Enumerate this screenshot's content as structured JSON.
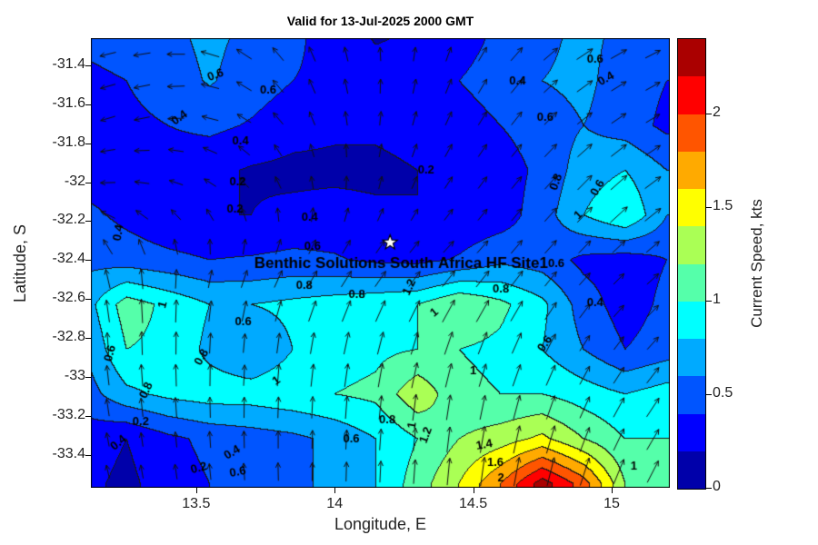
{
  "chart_data": {
    "type": "heatmap",
    "subtype": "filled_contour_with_quiver_arrows",
    "title": "Valid for 13-Jul-2025 2000 GMT",
    "xlabel": "Longitude, E",
    "ylabel": "Latitude, S",
    "units": "kts",
    "xlim": [
      13.12,
      15.21
    ],
    "ylim": [
      -33.57,
      -31.26
    ],
    "grid_on": false,
    "xticks": [
      {
        "v": 13.5,
        "label": "13.5"
      },
      {
        "v": 14.0,
        "label": "14"
      },
      {
        "v": 14.5,
        "label": "14.5"
      },
      {
        "v": 15.0,
        "label": "15"
      }
    ],
    "yticks": [
      {
        "v": -31.4,
        "label": "-31.4"
      },
      {
        "v": -31.6,
        "label": "-31.6"
      },
      {
        "v": -31.8,
        "label": "-31.8"
      },
      {
        "v": -32.0,
        "label": "-32"
      },
      {
        "v": -32.2,
        "label": "-32.2"
      },
      {
        "v": -32.4,
        "label": "-32.4"
      },
      {
        "v": -32.6,
        "label": "-32.6"
      },
      {
        "v": -32.8,
        "label": "-32.8"
      },
      {
        "v": -33.0,
        "label": "-33"
      },
      {
        "v": -33.2,
        "label": "-33.2"
      },
      {
        "v": -33.4,
        "label": "-33.4"
      }
    ],
    "colorbar": {
      "label": "Current Speed, kts",
      "min": 0,
      "max": 2.4,
      "band_step": 0.2,
      "position": "right",
      "ticks": [
        {
          "v": 0,
          "label": "0"
        },
        {
          "v": 0.5,
          "label": "0.5"
        },
        {
          "v": 1,
          "label": "1"
        },
        {
          "v": 1.5,
          "label": "1.5"
        },
        {
          "v": 2,
          "label": "2"
        }
      ],
      "colors": [
        "#0000aa",
        "#0000ff",
        "#0055ff",
        "#00aaff",
        "#00ffff",
        "#55ffaa",
        "#aaff55",
        "#ffff00",
        "#ffaa00",
        "#ff5500",
        "#ff0000",
        "#aa0000"
      ]
    },
    "grid": {
      "lon": [
        13.1,
        13.25,
        13.4,
        13.55,
        13.7,
        13.85,
        14.0,
        14.15,
        14.3,
        14.45,
        14.6,
        14.75,
        14.9,
        15.05,
        15.2
      ],
      "lat": [
        -31.25,
        -31.48,
        -31.71,
        -31.94,
        -32.17,
        -32.4,
        -32.63,
        -32.86,
        -33.09,
        -33.32,
        -33.55
      ],
      "speed_kts": [
        [
          0.45,
          0.5,
          0.55,
          0.65,
          0.55,
          0.45,
          0.3,
          0.18,
          0.22,
          0.3,
          0.45,
          0.55,
          0.65,
          0.55,
          0.45
        ],
        [
          0.35,
          0.4,
          0.5,
          0.62,
          0.5,
          0.4,
          0.35,
          0.28,
          0.32,
          0.4,
          0.5,
          0.6,
          0.65,
          0.5,
          0.4
        ],
        [
          0.3,
          0.35,
          0.4,
          0.45,
          0.38,
          0.28,
          0.24,
          0.24,
          0.28,
          0.3,
          0.4,
          0.5,
          0.6,
          0.5,
          0.35
        ],
        [
          0.3,
          0.3,
          0.3,
          0.25,
          0.18,
          0.15,
          0.15,
          0.15,
          0.2,
          0.25,
          0.3,
          0.45,
          0.7,
          0.8,
          0.6
        ],
        [
          0.45,
          0.35,
          0.25,
          0.2,
          0.2,
          0.25,
          0.28,
          0.24,
          0.2,
          0.25,
          0.3,
          0.5,
          0.8,
          1.0,
          0.6
        ],
        [
          0.55,
          0.5,
          0.45,
          0.4,
          0.42,
          0.45,
          0.42,
          0.36,
          0.34,
          0.42,
          0.55,
          0.5,
          0.35,
          0.3,
          0.4
        ],
        [
          0.7,
          1.1,
          0.95,
          0.8,
          0.8,
          0.85,
          0.9,
          0.95,
          1.0,
          1.2,
          1.05,
          0.85,
          0.5,
          0.3,
          0.45
        ],
        [
          0.6,
          1.0,
          0.95,
          0.75,
          0.6,
          0.8,
          0.9,
          0.95,
          1.0,
          1.0,
          0.95,
          0.8,
          0.6,
          0.4,
          0.5
        ],
        [
          0.5,
          0.75,
          0.85,
          0.9,
          0.9,
          0.95,
          1.0,
          1.05,
          1.35,
          1.05,
          1.0,
          1.0,
          0.9,
          0.8,
          0.9
        ],
        [
          0.3,
          0.2,
          0.35,
          0.45,
          0.5,
          0.55,
          0.65,
          0.8,
          1.0,
          1.2,
          1.3,
          1.45,
          1.2,
          1.0,
          1.0
        ],
        [
          0.25,
          0.15,
          0.3,
          0.4,
          0.5,
          0.6,
          0.6,
          0.8,
          1.1,
          1.4,
          1.8,
          2.3,
          1.9,
          1.2,
          1.0
        ]
      ]
    },
    "quiver": {
      "lon": [
        13.12,
        13.38,
        13.64,
        13.9,
        14.17,
        14.43,
        14.69,
        14.95,
        15.21
      ],
      "lat": [
        -31.26,
        -31.645,
        -32.03,
        -32.415,
        -32.8,
        -33.185,
        -33.57
      ],
      "angle_deg_ccw_from_east": [
        [
          195,
          185,
          150,
          115,
          95,
          70,
          45,
          30,
          25
        ],
        [
          200,
          190,
          155,
          115,
          85,
          65,
          50,
          35,
          30
        ],
        [
          185,
          165,
          135,
          100,
          75,
          55,
          50,
          45,
          35
        ],
        [
          110,
          90,
          70,
          55,
          50,
          45,
          50,
          45,
          40
        ],
        [
          95,
          90,
          85,
          80,
          75,
          70,
          65,
          55,
          45
        ],
        [
          100,
          95,
          90,
          88,
          85,
          82,
          75,
          65,
          55
        ],
        [
          105,
          100,
          95,
          90,
          88,
          85,
          80,
          72,
          62
        ]
      ]
    },
    "contour_labels": [
      {
        "lon": 13.57,
        "lat": -31.45,
        "text": "0.6",
        "rot": -20
      },
      {
        "lon": 13.76,
        "lat": -31.53,
        "text": "0.6",
        "rot": 0
      },
      {
        "lon": 13.44,
        "lat": -31.67,
        "text": "0.4",
        "rot": -35
      },
      {
        "lon": 13.66,
        "lat": -31.79,
        "text": "0.4",
        "rot": 0
      },
      {
        "lon": 14.66,
        "lat": -31.48,
        "text": "0.4",
        "rot": 0
      },
      {
        "lon": 14.94,
        "lat": -31.37,
        "text": "0.6",
        "rot": 0
      },
      {
        "lon": 14.98,
        "lat": -31.47,
        "text": "0.4",
        "rot": -30
      },
      {
        "lon": 14.76,
        "lat": -31.67,
        "text": "0.6",
        "rot": 0
      },
      {
        "lon": 13.65,
        "lat": -32.0,
        "text": "0.2",
        "rot": 0
      },
      {
        "lon": 13.64,
        "lat": -32.14,
        "text": "0.2",
        "rot": 0
      },
      {
        "lon": 13.91,
        "lat": -32.18,
        "text": "0.4",
        "rot": 0
      },
      {
        "lon": 14.33,
        "lat": -31.94,
        "text": "0.2",
        "rot": 0
      },
      {
        "lon": 14.8,
        "lat": -32.0,
        "text": "0.8",
        "rot": -70
      },
      {
        "lon": 14.95,
        "lat": -32.03,
        "text": "0.6",
        "rot": -60
      },
      {
        "lon": 14.88,
        "lat": -32.17,
        "text": "1",
        "rot": -45
      },
      {
        "lon": 13.22,
        "lat": -32.26,
        "text": "0.4",
        "rot": -80
      },
      {
        "lon": 13.92,
        "lat": -32.33,
        "text": "0.6",
        "rot": 0
      },
      {
        "lon": 13.89,
        "lat": -32.53,
        "text": "0.8",
        "rot": 0
      },
      {
        "lon": 14.08,
        "lat": -32.58,
        "text": "0.8",
        "rot": 0
      },
      {
        "lon": 14.27,
        "lat": -32.54,
        "text": "1.2",
        "rot": -65
      },
      {
        "lon": 14.36,
        "lat": -32.67,
        "text": "1",
        "rot": -40
      },
      {
        "lon": 14.6,
        "lat": -32.55,
        "text": "0.8",
        "rot": 0
      },
      {
        "lon": 14.94,
        "lat": -32.62,
        "text": "0.4",
        "rot": 0
      },
      {
        "lon": 14.8,
        "lat": -32.42,
        "text": "0.6",
        "rot": 0
      },
      {
        "lon": 13.38,
        "lat": -32.63,
        "text": "1",
        "rot": -75
      },
      {
        "lon": 13.67,
        "lat": -32.72,
        "text": "0.6",
        "rot": 0
      },
      {
        "lon": 13.19,
        "lat": -32.88,
        "text": "0.6",
        "rot": -75
      },
      {
        "lon": 13.52,
        "lat": -32.9,
        "text": "0.8",
        "rot": -60
      },
      {
        "lon": 13.32,
        "lat": -33.07,
        "text": "0.8",
        "rot": -65
      },
      {
        "lon": 13.79,
        "lat": -33.02,
        "text": "1",
        "rot": -35
      },
      {
        "lon": 14.5,
        "lat": -32.97,
        "text": "1",
        "rot": 0
      },
      {
        "lon": 14.76,
        "lat": -32.83,
        "text": "0.6",
        "rot": -55
      },
      {
        "lon": 13.3,
        "lat": -33.23,
        "text": "0.2",
        "rot": 0
      },
      {
        "lon": 13.22,
        "lat": -33.34,
        "text": "0.4",
        "rot": -40
      },
      {
        "lon": 13.51,
        "lat": -33.47,
        "text": "0.2",
        "rot": -15
      },
      {
        "lon": 13.65,
        "lat": -33.49,
        "text": "0.6",
        "rot": -10
      },
      {
        "lon": 13.63,
        "lat": -33.39,
        "text": "0.4",
        "rot": -30
      },
      {
        "lon": 14.06,
        "lat": -33.32,
        "text": "0.6",
        "rot": 0
      },
      {
        "lon": 14.19,
        "lat": -33.22,
        "text": "0.8",
        "rot": 0
      },
      {
        "lon": 14.28,
        "lat": -33.25,
        "text": "1",
        "rot": -80
      },
      {
        "lon": 14.33,
        "lat": -33.3,
        "text": "1.2",
        "rot": -70
      },
      {
        "lon": 14.54,
        "lat": -33.35,
        "text": "1.4",
        "rot": -10
      },
      {
        "lon": 14.58,
        "lat": -33.44,
        "text": "1.6",
        "rot": 0
      },
      {
        "lon": 14.6,
        "lat": -33.52,
        "text": "2",
        "rot": 0
      },
      {
        "lon": 15.08,
        "lat": -33.46,
        "text": "1",
        "rot": 0
      }
    ],
    "site_marker": {
      "lon": 14.2,
      "lat": -32.31,
      "symbol": "white-star"
    },
    "site_label": {
      "lon": 14.24,
      "lat": -32.42,
      "text": "Benthic Solutions South Africa HF Site1"
    }
  }
}
